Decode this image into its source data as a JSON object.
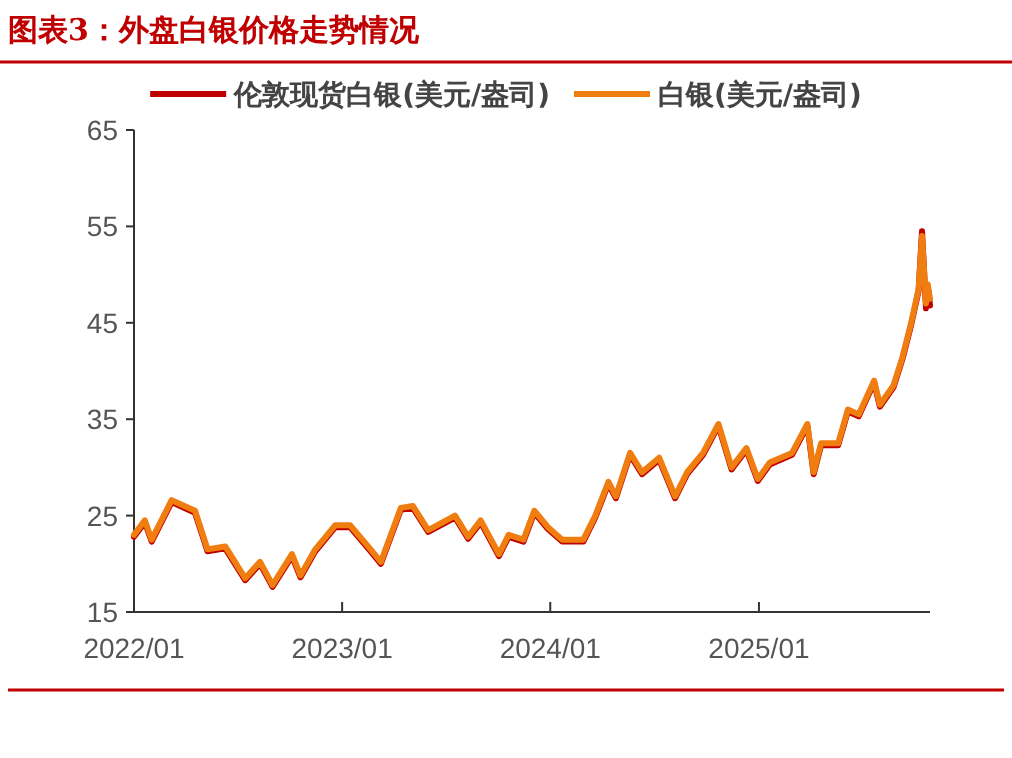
{
  "chart_data": {
    "type": "line",
    "title": "图表3：外盘白银价格走势情况",
    "legend": "top",
    "grid": false,
    "ylim": [
      15,
      65
    ],
    "yticks": [
      15,
      25,
      35,
      45,
      55,
      65
    ],
    "xlim": [
      "2022-01-01",
      "2025-10-28"
    ],
    "xticks": [
      {
        "value": "2022-01-01",
        "label": "2022/01"
      },
      {
        "value": "2023-01-01",
        "label": "2023/01"
      },
      {
        "value": "2024-01-01",
        "label": "2024/01"
      },
      {
        "value": "2025-01-01",
        "label": "2025/01"
      }
    ],
    "x": [
      "2022-01-01",
      "2022-01-20",
      "2022-02-01",
      "2022-03-08",
      "2022-04-18",
      "2022-05-10",
      "2022-06-10",
      "2022-07-15",
      "2022-08-10",
      "2022-09-01",
      "2022-10-05",
      "2022-10-20",
      "2022-11-15",
      "2022-12-20",
      "2023-01-15",
      "2023-02-20",
      "2023-03-10",
      "2023-04-14",
      "2023-05-05",
      "2023-06-01",
      "2023-07-18",
      "2023-08-10",
      "2023-09-01",
      "2023-10-03",
      "2023-10-20",
      "2023-11-15",
      "2023-12-04",
      "2023-12-28",
      "2024-01-22",
      "2024-02-28",
      "2024-03-20",
      "2024-04-12",
      "2024-04-25",
      "2024-05-20",
      "2024-06-10",
      "2024-07-10",
      "2024-08-07",
      "2024-08-28",
      "2024-09-25",
      "2024-10-22",
      "2024-11-14",
      "2024-12-10",
      "2024-12-30",
      "2025-01-20",
      "2025-02-28",
      "2025-03-27",
      "2025-04-07",
      "2025-04-20",
      "2025-05-20",
      "2025-06-06",
      "2025-06-25",
      "2025-07-22",
      "2025-08-01",
      "2025-08-25",
      "2025-09-10",
      "2025-09-25",
      "2025-10-08",
      "2025-10-14",
      "2025-10-21",
      "2025-10-24",
      "2025-10-28"
    ],
    "series": [
      {
        "name": "伦敦现货白银(美元/盎司)",
        "color": "#c00000",
        "values": [
          22.8,
          24.3,
          22.3,
          26.4,
          25.3,
          21.3,
          21.6,
          18.3,
          20.0,
          17.6,
          20.8,
          18.6,
          21.3,
          23.8,
          23.8,
          21.3,
          20.0,
          25.6,
          25.8,
          23.3,
          24.8,
          22.6,
          24.3,
          20.8,
          22.8,
          22.3,
          25.3,
          23.6,
          22.3,
          22.3,
          24.8,
          28.3,
          26.8,
          31.3,
          29.3,
          30.8,
          26.8,
          29.3,
          31.3,
          34.3,
          29.8,
          31.8,
          28.6,
          30.3,
          31.3,
          34.3,
          29.3,
          32.3,
          32.3,
          35.8,
          35.3,
          38.8,
          36.3,
          38.3,
          41.3,
          44.8,
          48.3,
          54.5,
          46.5,
          48.8,
          46.8
        ]
      },
      {
        "name": "白银(美元/盎司)",
        "color": "#f07d10",
        "values": [
          23.0,
          24.5,
          22.5,
          26.6,
          25.5,
          21.5,
          21.8,
          18.5,
          20.2,
          17.8,
          21.0,
          18.8,
          21.5,
          24.0,
          24.0,
          21.5,
          20.2,
          25.8,
          26.0,
          23.5,
          25.0,
          22.8,
          24.5,
          21.0,
          23.0,
          22.5,
          25.5,
          23.8,
          22.5,
          22.5,
          25.0,
          28.5,
          27.0,
          31.5,
          29.5,
          31.0,
          27.0,
          29.5,
          31.5,
          34.5,
          30.0,
          32.0,
          28.8,
          30.5,
          31.5,
          34.5,
          29.5,
          32.5,
          32.5,
          36.0,
          35.5,
          39.0,
          36.5,
          38.5,
          41.5,
          45.0,
          48.5,
          54.0,
          47.0,
          49.0,
          47.5
        ]
      }
    ]
  }
}
